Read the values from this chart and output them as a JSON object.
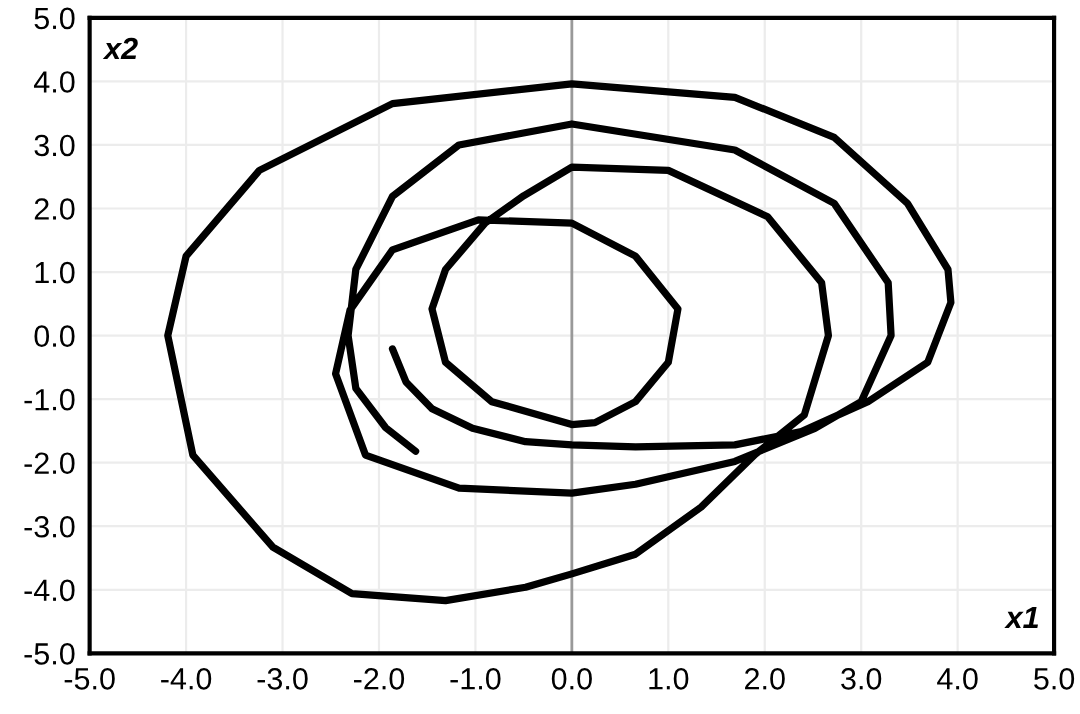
{
  "chart_data": {
    "type": "line",
    "xlabel": "x1",
    "ylabel": "x2",
    "series": [
      {
        "color": "#000000",
        "x": [
          -1.86,
          -1.72,
          -1.45,
          -1.03,
          -0.48,
          0,
          0.66,
          1.69,
          2.38,
          3.07,
          3.69,
          3.93,
          3.9,
          3.48,
          2.72,
          1.69,
          0,
          -1.86,
          -3.24,
          -4.0,
          -4.19,
          -3.93,
          -3.1,
          -2.28,
          -1.31,
          -0.48,
          0,
          0.66,
          1.34,
          1.9,
          2.41,
          2.66,
          2.59,
          2.03,
          1.0,
          0,
          -0.5,
          -0.9,
          -1.31,
          -1.45,
          -1.31,
          -0.83,
          0,
          0.24,
          0.66,
          1.0,
          1.1,
          0.66,
          0,
          -0.97,
          -1.86,
          -2.3,
          -2.45,
          -2.14,
          -1.17,
          0,
          0.66,
          1.69,
          2.52,
          3.0,
          3.31,
          3.28,
          2.72,
          1.69,
          0,
          -1.17,
          -1.86,
          -2.24,
          -2.32,
          -2.24,
          -1.93,
          -1.62
        ],
        "values": [
          -0.21,
          -0.73,
          -1.15,
          -1.46,
          -1.67,
          -1.72,
          -1.75,
          -1.72,
          -1.51,
          -1.04,
          -0.42,
          0.52,
          1.04,
          2.08,
          3.12,
          3.75,
          3.96,
          3.65,
          2.6,
          1.25,
          0,
          -1.88,
          -3.33,
          -4.06,
          -4.17,
          -3.96,
          -3.75,
          -3.44,
          -2.7,
          -1.87,
          -1.25,
          0,
          0.83,
          1.87,
          2.6,
          2.65,
          2.2,
          1.77,
          1.04,
          0.42,
          -0.42,
          -1.04,
          -1.4,
          -1.37,
          -1.04,
          -0.42,
          0.42,
          1.25,
          1.77,
          1.82,
          1.35,
          0.4,
          -0.6,
          -1.88,
          -2.4,
          -2.48,
          -2.34,
          -1.98,
          -1.46,
          -1.04,
          0,
          0.83,
          2.08,
          2.92,
          3.33,
          3.0,
          2.19,
          1.04,
          0,
          -0.83,
          -1.45,
          -1.82
        ]
      }
    ],
    "xlim": [
      -5,
      5
    ],
    "ylim": [
      -5,
      5
    ],
    "xticks": [
      {
        "value": -5,
        "label": "-5.0"
      },
      {
        "value": -4,
        "label": "-4.0"
      },
      {
        "value": -3,
        "label": "-3.0"
      },
      {
        "value": -2,
        "label": "-2.0"
      },
      {
        "value": -1,
        "label": "-1.0"
      },
      {
        "value": 0,
        "label": "0.0"
      },
      {
        "value": 1,
        "label": "1.0"
      },
      {
        "value": 2,
        "label": "2.0"
      },
      {
        "value": 3,
        "label": "3.0"
      },
      {
        "value": 4,
        "label": "4.0"
      },
      {
        "value": 5,
        "label": "5.0"
      }
    ],
    "yticks": [
      {
        "value": -5,
        "label": "-5.0"
      },
      {
        "value": -4,
        "label": "-4.0"
      },
      {
        "value": -3,
        "label": "-3.0"
      },
      {
        "value": -2,
        "label": "-2.0"
      },
      {
        "value": -1,
        "label": "-1.0"
      },
      {
        "value": 0,
        "label": "0.0"
      },
      {
        "value": 1,
        "label": "1.0"
      },
      {
        "value": 2,
        "label": "2.0"
      },
      {
        "value": 3,
        "label": "3.0"
      },
      {
        "value": 4,
        "label": "4.0"
      },
      {
        "value": 5,
        "label": "5.0"
      }
    ],
    "ref_lines": [
      {
        "axis": "x",
        "value": 0,
        "color": "#999999"
      }
    ],
    "grid": true,
    "marker": "none",
    "line_style": "solid"
  }
}
